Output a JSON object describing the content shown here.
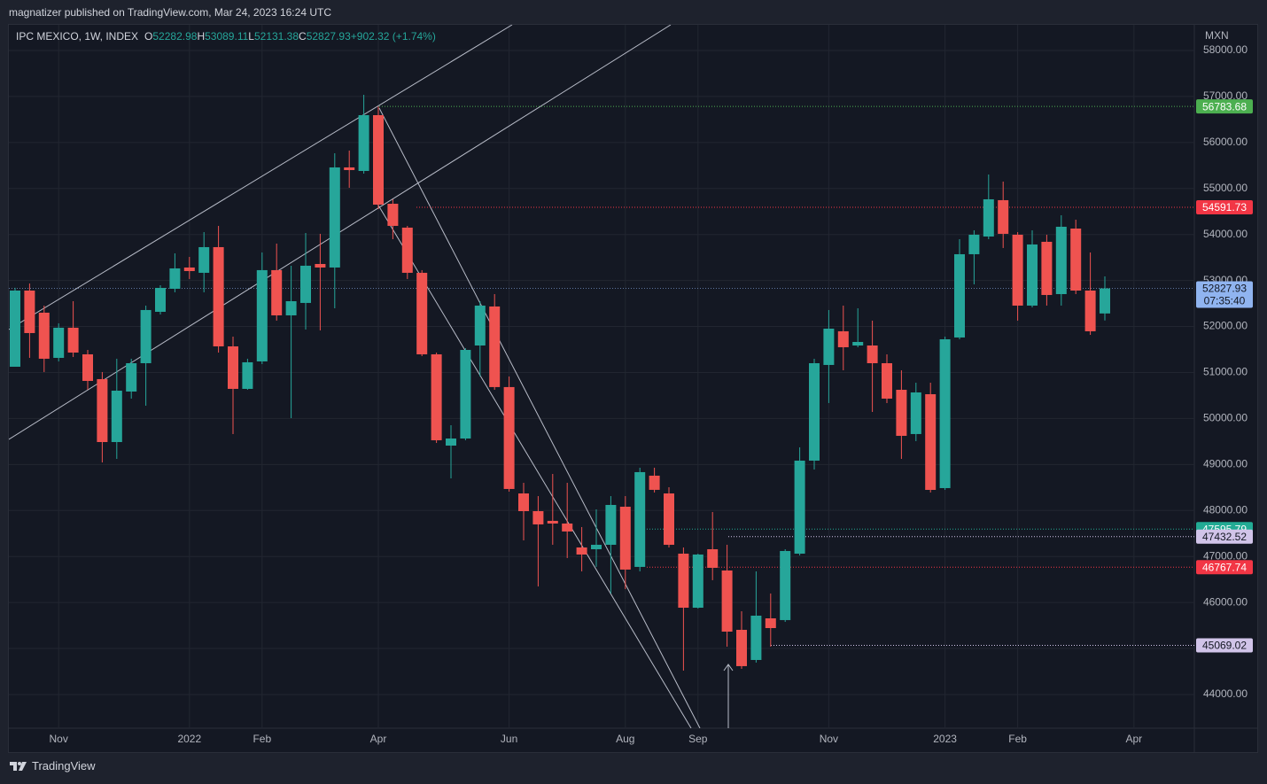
{
  "header": {
    "publisher": "magnatizer published on TradingView.com, Mar 24, 2023 16:24 UTC"
  },
  "footer": {
    "brand": "TradingView"
  },
  "chart_data": {
    "type": "candlestick",
    "title": "IPC MEXICO, 1W, INDEX",
    "ohlc_labels": [
      "O",
      "H",
      "L",
      "C"
    ],
    "change": "+902.32 (+1.74%)",
    "currency": "MXN",
    "countdown": "07:35:40",
    "up_color": "#26a69a",
    "down_color": "#ef5350",
    "grid": true,
    "categories": [
      null,
      null,
      null,
      "Nov",
      null,
      null,
      null,
      null,
      null,
      null,
      null,
      null,
      "2022",
      null,
      null,
      null,
      null,
      "Feb",
      null,
      null,
      null,
      null,
      null,
      null,
      null,
      "Apr",
      null,
      null,
      null,
      null,
      null,
      null,
      null,
      null,
      "Jun",
      null,
      null,
      null,
      null,
      null,
      null,
      null,
      "Aug",
      null,
      null,
      null,
      null,
      "Sep",
      null,
      null,
      null,
      null,
      null,
      null,
      null,
      null,
      "Nov",
      null,
      null,
      null,
      null,
      null,
      null,
      null,
      "2023",
      null,
      null,
      null,
      null,
      "Feb",
      null,
      null,
      null,
      null,
      null,
      null,
      null,
      "Apr"
    ],
    "open": [
      51125,
      52781,
      52300,
      51318,
      51973,
      51395,
      50856,
      49488,
      50586,
      51202,
      52319,
      52820,
      53282,
      53167,
      53725,
      51568,
      50644,
      51241,
      53225,
      52242,
      52512,
      53359,
      53282,
      55458,
      55381,
      56594,
      54668,
      54149,
      53167,
      51395,
      49411,
      49565,
      51587,
      52435,
      50683,
      48371,
      47986,
      47775,
      47717,
      47197,
      47158,
      47255,
      48082,
      46774,
      48757,
      48371,
      47062,
      45887,
      47158,
      46696,
      45406,
      44751,
      45656,
      45618,
      47062,
      49084,
      51164,
      51896,
      51587,
      51587,
      51202,
      50624,
      49662,
      50528,
      48487,
      51761,
      53571,
      53956,
      54746,
      53995,
      52454,
      53841,
      52704,
      54129,
      52781,
      52282.98,
      null,
      null
    ],
    "high": [
      52840,
      52935,
      52454,
      52069,
      52550,
      51491,
      51010,
      51299,
      51299,
      52454,
      52897,
      53590,
      53513,
      54052,
      54187,
      51780,
      51299,
      53609,
      53802,
      53321,
      54033,
      54014,
      55766,
      55824,
      57037,
      56783.68,
      54765,
      54187,
      53225,
      51433,
      49854,
      51530,
      52550,
      52704,
      50913,
      48602,
      48313,
      48795,
      48602,
      47640,
      48024,
      48313,
      48313,
      48930,
      48930,
      48506,
      47197,
      47062,
      47967,
      47255,
      45810,
      46677,
      46196,
      47158,
      49373,
      51299,
      52358,
      52454,
      52396,
      52127,
      51395,
      51048,
      50778,
      50778,
      51780,
      53898,
      54091,
      55304,
      55150,
      54052,
      54091,
      53995,
      54418,
      54322,
      53609,
      53089.11,
      null,
      null
    ],
    "low": [
      51125,
      51318,
      51010,
      51241,
      51337,
      50624,
      49045,
      49122,
      50432,
      50278,
      52262,
      52743,
      53032,
      52743,
      51433,
      49662,
      50624,
      51183,
      52127,
      50008,
      51934,
      51915,
      52396,
      55015,
      55323,
      54553,
      53898,
      53032,
      51356,
      49469,
      48699,
      49527,
      50913,
      50625,
      48410,
      47351,
      46350,
      47255,
      46966,
      46677,
      46774,
      46196,
      46292,
      46677,
      48391,
      47197,
      44520,
      45868,
      46485,
      45040,
      44559,
      44694,
      45040,
      45579,
      47023,
      48892,
      50336,
      51048,
      51549,
      50143,
      50336,
      49122,
      49508,
      48391,
      48449,
      51722,
      52916,
      53898,
      53706,
      52127,
      52416,
      52454,
      52454,
      52704,
      51818,
      52131.38,
      null,
      null
    ],
    "close": [
      52781,
      51857,
      51299,
      51973,
      51433,
      50817,
      49488,
      50605,
      51202,
      52358,
      52839,
      53263,
      53205,
      53725,
      51568,
      50644,
      51222,
      53225,
      52242,
      52550,
      53321,
      53282,
      55458,
      55400,
      56594,
      54649,
      54187,
      53167,
      51395,
      49527,
      49565,
      51491,
      52454,
      50683,
      48468,
      47986,
      47698,
      47717,
      47544,
      47043,
      47255,
      48121,
      46716,
      48834,
      48449,
      47255,
      45887,
      47043,
      46754,
      45367,
      44617,
      45714,
      45444,
      47120,
      49084,
      51202,
      51953,
      51549,
      51664,
      51202,
      50432,
      49623,
      50567,
      48448,
      51722,
      53571,
      53995,
      54765,
      54014,
      52454,
      53783,
      52685,
      54168,
      52781,
      51896,
      52827.93,
      null,
      null
    ],
    "ylim": [
      43268,
      58558
    ],
    "yticks": [
      {
        "value": 44000,
        "label": "44000.00"
      },
      {
        "value": 45000,
        "label": "45000.00"
      },
      {
        "value": 46000,
        "label": "46000.00"
      },
      {
        "value": 47000,
        "label": "47000.00"
      },
      {
        "value": 48000,
        "label": "48000.00"
      },
      {
        "value": 49000,
        "label": "49000.00"
      },
      {
        "value": 50000,
        "label": "50000.00"
      },
      {
        "value": 51000,
        "label": "51000.00"
      },
      {
        "value": 52000,
        "label": "52000.00"
      },
      {
        "value": 53000,
        "label": "53000.00"
      },
      {
        "value": 54000,
        "label": "54000.00"
      },
      {
        "value": 55000,
        "label": "55000.00"
      },
      {
        "value": 56000,
        "label": "56000.00"
      },
      {
        "value": 57000,
        "label": "57000.00"
      },
      {
        "value": 58000,
        "label": "58000.00"
      }
    ],
    "last_price_color": "#90b4f0",
    "levels": [
      {
        "value": 56783.68,
        "color": "#4caf50"
      },
      {
        "value": 54591.73,
        "color": "#f23645"
      },
      {
        "value": 47595.79,
        "color": "#22ab94"
      },
      {
        "value": 47432.52,
        "color": "#d1c4e9"
      },
      {
        "value": 46767.74,
        "color": "#f23645"
      },
      {
        "value": 45069.02,
        "color": "#d1c4e9"
      }
    ]
  }
}
